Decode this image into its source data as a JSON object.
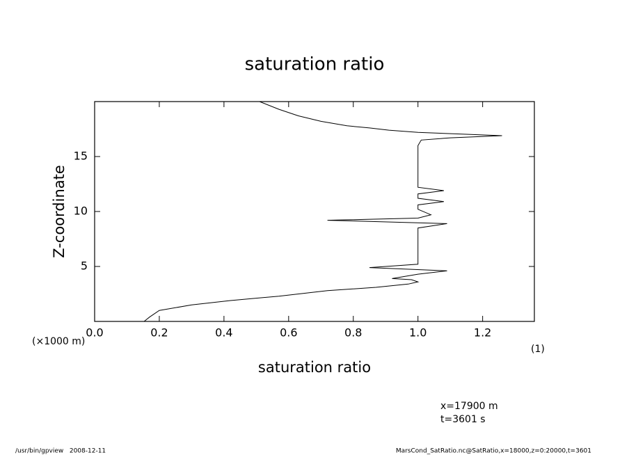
{
  "chart_data": {
    "type": "line",
    "title": "saturation ratio",
    "x_label": "saturation ratio",
    "y_label": "Z-coordinate",
    "y_unit": "(×1000 m)",
    "x_unit": "(1)",
    "annotations": [
      "x=17900 m",
      "t=3601 s"
    ],
    "footer_left": "/usr/bin/gpview   2008-12-11",
    "footer_right": "MarsCond_SatRatio.nc@SatRatio,x=18000,z=0:20000,t=3601",
    "xlim": [
      0,
      1.36
    ],
    "ylim": [
      0,
      20
    ],
    "xticks": [
      {
        "value": 0,
        "label": "0.0"
      },
      0.2,
      0.4,
      0.6,
      0.8,
      {
        "value": 1,
        "label": "1.0"
      },
      1.2
    ],
    "yticks": [
      5,
      10,
      15
    ],
    "color": "#000000",
    "x": [
      0.153,
      0.17,
      0.2,
      0.3,
      0.42,
      0.57,
      0.72,
      0.87,
      0.97,
      1.0,
      0.98,
      0.92,
      0.96,
      1.0,
      1.09,
      0.85,
      1.0,
      1.0,
      1.0,
      1.0,
      1.0,
      1.09,
      0.72,
      1.0,
      1.04,
      1.0,
      1.0,
      1.08,
      1.0,
      1.0,
      1.08,
      1.0,
      1.0,
      1.0,
      1.0,
      1.0,
      1.01,
      1.1,
      1.26,
      1.0,
      0.91,
      0.85,
      0.78,
      0.7,
      0.63,
      0.57,
      0.51
    ],
    "y": [
      0,
      0.4,
      1.0,
      1.5,
      1.9,
      2.3,
      2.8,
      3.1,
      3.4,
      3.6,
      3.8,
      3.9,
      4.1,
      4.3,
      4.6,
      4.9,
      5.2,
      6,
      7,
      8,
      8.5,
      8.9,
      9.2,
      9.4,
      9.7,
      10.2,
      10.6,
      10.9,
      11.2,
      11.6,
      11.9,
      12.2,
      13,
      14,
      15,
      16,
      16.5,
      16.7,
      16.9,
      17.2,
      17.4,
      17.6,
      17.8,
      18.2,
      18.7,
      19.3,
      20
    ]
  }
}
